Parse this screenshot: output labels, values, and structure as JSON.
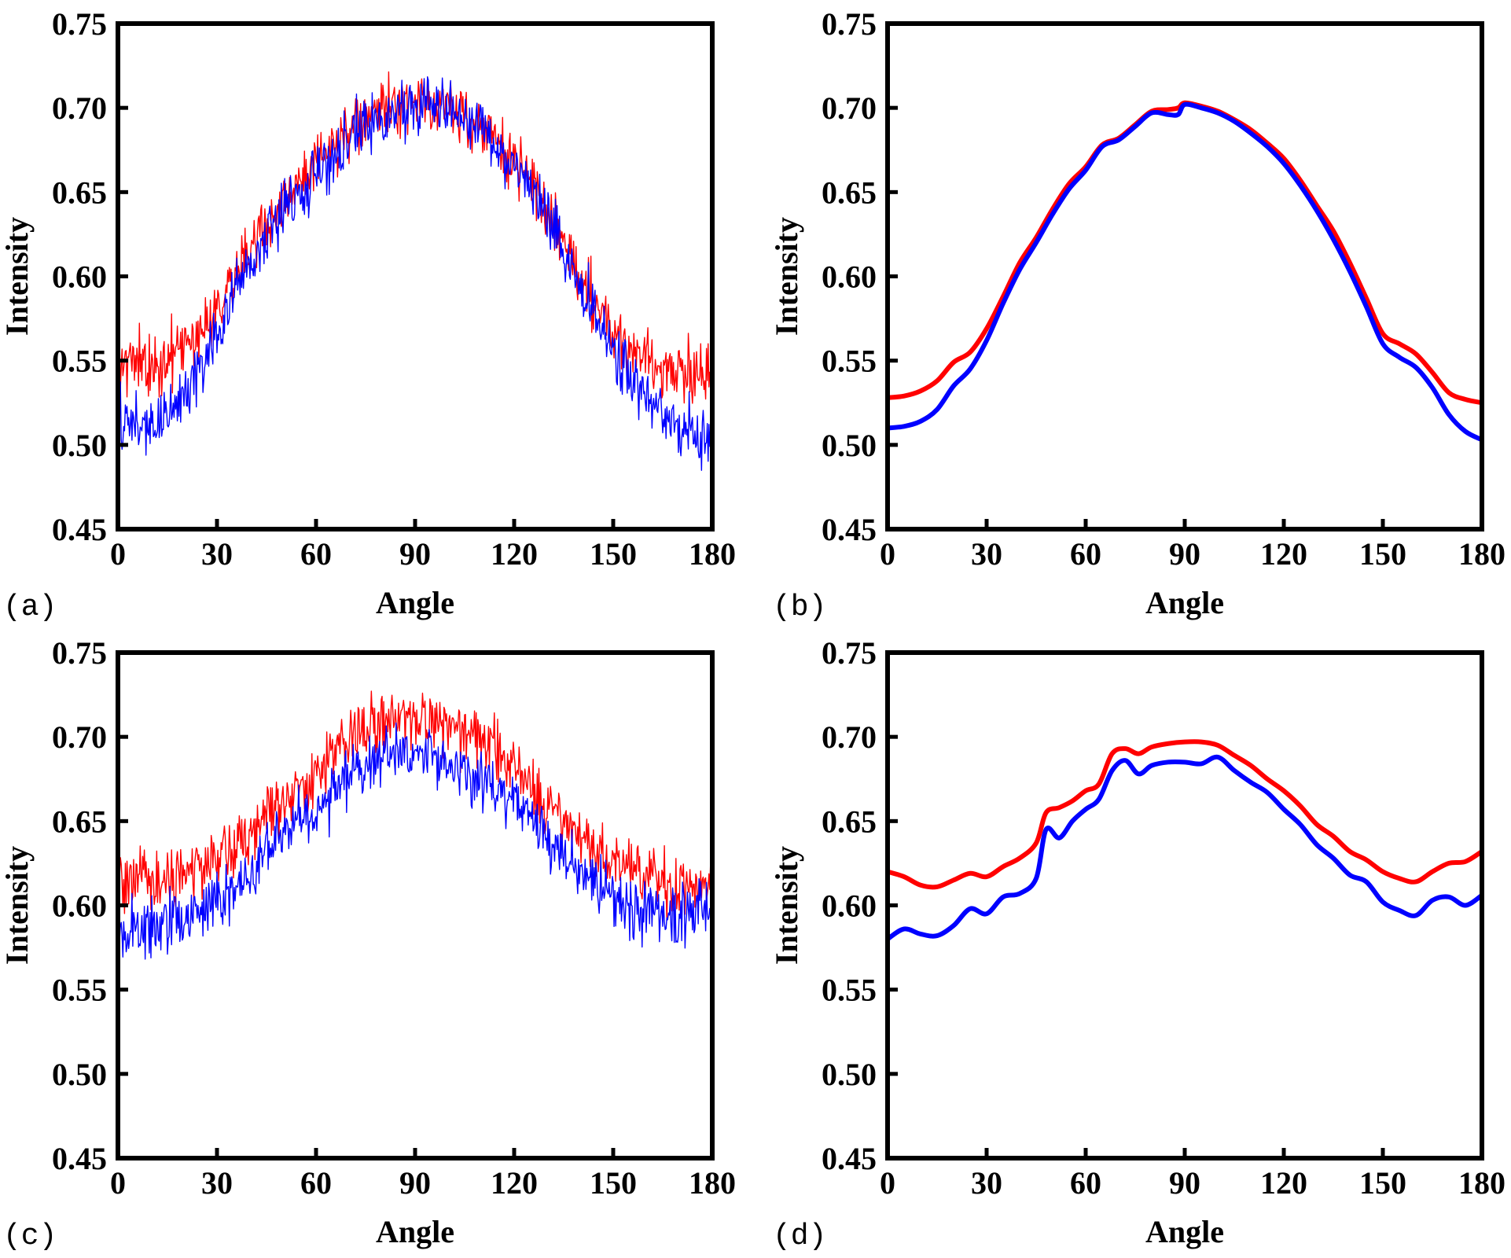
{
  "chart_data": [
    {
      "type": "line",
      "panel_label": "(a)",
      "xlabel": "Angle",
      "ylabel": "Intensity",
      "xlim": [
        0,
        180
      ],
      "ylim": [
        0.45,
        0.75
      ],
      "xticks": [
        "0",
        "30",
        "60",
        "90",
        "120",
        "150",
        "180"
      ],
      "yticks": [
        "0.45",
        "0.50",
        "0.55",
        "0.60",
        "0.65",
        "0.70",
        "0.75"
      ],
      "grid": false,
      "legend": "none",
      "style": "noisy",
      "series": [
        {
          "color": "#ff0000",
          "x": [
            0,
            10,
            20,
            30,
            40,
            50,
            60,
            70,
            80,
            90,
            100,
            110,
            120,
            130,
            140,
            150,
            160,
            170,
            180
          ],
          "y": [
            0.553,
            0.545,
            0.557,
            0.583,
            0.617,
            0.643,
            0.665,
            0.685,
            0.699,
            0.704,
            0.7,
            0.69,
            0.668,
            0.64,
            0.6,
            0.567,
            0.55,
            0.543,
            0.546
          ]
        },
        {
          "color": "#0000ff",
          "x": [
            0,
            10,
            20,
            30,
            40,
            50,
            60,
            70,
            80,
            90,
            100,
            110,
            120,
            130,
            140,
            150,
            160,
            170,
            180
          ],
          "y": [
            0.515,
            0.51,
            0.528,
            0.566,
            0.608,
            0.638,
            0.661,
            0.682,
            0.694,
            0.703,
            0.701,
            0.688,
            0.665,
            0.637,
            0.595,
            0.557,
            0.528,
            0.508,
            0.502
          ]
        }
      ]
    },
    {
      "type": "line",
      "panel_label": "(b)",
      "xlabel": "Angle",
      "ylabel": "Intensity",
      "xlim": [
        0,
        180
      ],
      "ylim": [
        0.45,
        0.75
      ],
      "xticks": [
        "0",
        "30",
        "60",
        "90",
        "120",
        "150",
        "180"
      ],
      "yticks": [
        "0.45",
        "0.50",
        "0.55",
        "0.60",
        "0.65",
        "0.70",
        "0.75"
      ],
      "grid": false,
      "legend": "none",
      "style": "smooth",
      "series": [
        {
          "color": "#ff0000",
          "x": [
            0,
            5,
            10,
            15,
            20,
            25,
            30,
            35,
            40,
            45,
            50,
            55,
            60,
            65,
            70,
            75,
            80,
            85,
            88,
            90,
            95,
            100,
            105,
            110,
            115,
            120,
            125,
            130,
            135,
            140,
            145,
            150,
            155,
            160,
            165,
            170,
            175,
            180
          ],
          "y": [
            0.528,
            0.529,
            0.532,
            0.538,
            0.549,
            0.555,
            0.569,
            0.588,
            0.608,
            0.623,
            0.64,
            0.655,
            0.665,
            0.678,
            0.682,
            0.69,
            0.698,
            0.699,
            0.7,
            0.703,
            0.701,
            0.698,
            0.693,
            0.687,
            0.679,
            0.67,
            0.657,
            0.642,
            0.627,
            0.608,
            0.587,
            0.566,
            0.56,
            0.554,
            0.543,
            0.531,
            0.527,
            0.525
          ]
        },
        {
          "color": "#0000ff",
          "x": [
            0,
            5,
            10,
            15,
            20,
            25,
            30,
            35,
            40,
            45,
            50,
            55,
            60,
            65,
            70,
            75,
            80,
            85,
            88,
            90,
            95,
            100,
            105,
            110,
            115,
            120,
            125,
            130,
            135,
            140,
            145,
            150,
            155,
            160,
            165,
            170,
            175,
            180
          ],
          "y": [
            0.51,
            0.511,
            0.514,
            0.521,
            0.535,
            0.545,
            0.562,
            0.584,
            0.604,
            0.62,
            0.637,
            0.652,
            0.663,
            0.677,
            0.681,
            0.689,
            0.697,
            0.696,
            0.696,
            0.702,
            0.7,
            0.697,
            0.692,
            0.685,
            0.677,
            0.667,
            0.654,
            0.639,
            0.622,
            0.603,
            0.582,
            0.56,
            0.552,
            0.546,
            0.534,
            0.518,
            0.508,
            0.503
          ]
        }
      ]
    },
    {
      "type": "line",
      "panel_label": "(c)",
      "xlabel": "Angle",
      "ylabel": "Intensity",
      "xlim": [
        0,
        180
      ],
      "ylim": [
        0.45,
        0.75
      ],
      "xticks": [
        "0",
        "30",
        "60",
        "90",
        "120",
        "150",
        "180"
      ],
      "yticks": [
        "0.45",
        "0.50",
        "0.55",
        "0.60",
        "0.65",
        "0.70",
        "0.75"
      ],
      "grid": false,
      "legend": "none",
      "style": "noisy",
      "series": [
        {
          "color": "#ff0000",
          "x": [
            0,
            10,
            20,
            30,
            40,
            47,
            50,
            60,
            70,
            80,
            90,
            100,
            110,
            120,
            130,
            140,
            150,
            160,
            170,
            180
          ],
          "y": [
            0.612,
            0.612,
            0.618,
            0.628,
            0.64,
            0.66,
            0.665,
            0.678,
            0.702,
            0.707,
            0.709,
            0.706,
            0.698,
            0.68,
            0.66,
            0.64,
            0.625,
            0.618,
            0.612,
            0.612
          ]
        },
        {
          "color": "#0000ff",
          "x": [
            0,
            10,
            20,
            30,
            40,
            47,
            50,
            60,
            70,
            80,
            90,
            100,
            110,
            120,
            130,
            140,
            150,
            160,
            170,
            180
          ],
          "y": [
            0.583,
            0.587,
            0.593,
            0.602,
            0.615,
            0.638,
            0.643,
            0.655,
            0.682,
            0.687,
            0.689,
            0.685,
            0.676,
            0.66,
            0.642,
            0.622,
            0.603,
            0.595,
            0.595,
            0.602
          ]
        }
      ]
    },
    {
      "type": "line",
      "panel_label": "(d)",
      "xlabel": "Angle",
      "ylabel": "Intensity",
      "xlim": [
        0,
        180
      ],
      "ylim": [
        0.45,
        0.75
      ],
      "xticks": [
        "0",
        "30",
        "60",
        "90",
        "120",
        "150",
        "180"
      ],
      "yticks": [
        "0.45",
        "0.50",
        "0.55",
        "0.60",
        "0.65",
        "0.70",
        "0.75"
      ],
      "grid": false,
      "legend": "none",
      "style": "smooth",
      "series": [
        {
          "color": "#ff0000",
          "x": [
            0,
            5,
            10,
            15,
            20,
            25,
            30,
            35,
            40,
            45,
            48,
            52,
            56,
            60,
            64,
            68,
            72,
            76,
            80,
            85,
            90,
            95,
            100,
            105,
            110,
            115,
            120,
            125,
            130,
            135,
            140,
            145,
            150,
            155,
            160,
            165,
            170,
            175,
            180
          ],
          "y": [
            0.62,
            0.617,
            0.612,
            0.611,
            0.615,
            0.619,
            0.617,
            0.623,
            0.628,
            0.637,
            0.655,
            0.658,
            0.662,
            0.668,
            0.672,
            0.69,
            0.693,
            0.69,
            0.694,
            0.696,
            0.697,
            0.697,
            0.695,
            0.689,
            0.683,
            0.675,
            0.668,
            0.659,
            0.648,
            0.641,
            0.632,
            0.627,
            0.62,
            0.616,
            0.614,
            0.62,
            0.625,
            0.626,
            0.632
          ]
        },
        {
          "color": "#0000ff",
          "x": [
            0,
            5,
            10,
            15,
            20,
            25,
            30,
            35,
            40,
            45,
            48,
            52,
            56,
            60,
            64,
            68,
            72,
            76,
            80,
            85,
            90,
            95,
            100,
            105,
            110,
            115,
            120,
            125,
            130,
            135,
            140,
            145,
            150,
            155,
            160,
            165,
            170,
            175,
            180
          ],
          "y": [
            0.58,
            0.586,
            0.583,
            0.582,
            0.588,
            0.598,
            0.595,
            0.605,
            0.607,
            0.616,
            0.645,
            0.64,
            0.65,
            0.657,
            0.663,
            0.68,
            0.686,
            0.678,
            0.683,
            0.685,
            0.685,
            0.684,
            0.688,
            0.68,
            0.673,
            0.667,
            0.657,
            0.648,
            0.636,
            0.628,
            0.618,
            0.614,
            0.602,
            0.597,
            0.594,
            0.603,
            0.605,
            0.6,
            0.606
          ]
        }
      ]
    }
  ]
}
